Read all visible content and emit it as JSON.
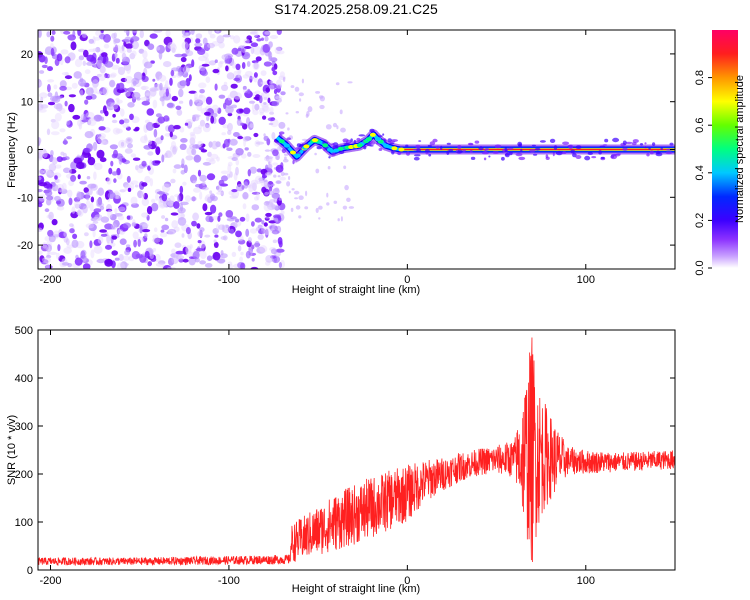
{
  "chart_data": [
    {
      "type": "heatmap",
      "title": "S174.2025.258.09.21.C25",
      "xlabel": "Height of straight line (km)",
      "ylabel": "Frequency (Hz)",
      "xlim": [
        -207,
        150
      ],
      "ylim": [
        -25,
        25
      ],
      "xticks": [
        -200,
        -100,
        0,
        100
      ],
      "yticks": [
        20,
        10,
        0,
        -10,
        -20
      ],
      "colorbar": {
        "label": "Normalized spectral amplitude",
        "range": [
          0.0,
          1.0
        ],
        "ticks": [
          "0.0",
          "0.2",
          "0.4",
          "0.6",
          "0.8"
        ],
        "colormap": [
          "#ffffff",
          "#a050ff",
          "#6400ff",
          "#0000ff",
          "#00c8ff",
          "#00ff80",
          "#80ff00",
          "#ffff00",
          "#ff8000",
          "#ff0000",
          "#ff0080"
        ]
      },
      "noise_region_x": [
        -207,
        -73
      ],
      "signal_track": {
        "x": [
          -73,
          -68,
          -62,
          -57,
          -52,
          -47,
          -42,
          -37,
          -32,
          -27,
          -22,
          -19,
          -16,
          -12,
          -8,
          -4,
          0,
          20,
          40,
          60,
          80,
          100,
          120,
          150
        ],
        "freq": [
          2.5,
          1.0,
          -1.5,
          0.5,
          2.0,
          1.2,
          -0.5,
          0.2,
          0.5,
          0.8,
          2.0,
          3.2,
          2.0,
          0.8,
          0.3,
          0.0,
          0.0,
          0.0,
          0.0,
          0.0,
          0.0,
          0.0,
          0.0,
          0.0
        ]
      }
    },
    {
      "type": "line",
      "xlabel": "Height of straight line (km)",
      "ylabel": "SNR (10 * v/v)",
      "xlim": [
        -207,
        150
      ],
      "ylim": [
        0,
        500
      ],
      "xticks": [
        -200,
        -100,
        0,
        100
      ],
      "yticks": [
        0,
        100,
        200,
        300,
        400,
        500
      ],
      "color": "#ff2020",
      "series": [
        {
          "name": "SNR",
          "x": [
            -207,
            -150,
            -100,
            -66,
            -65,
            -40,
            -20,
            0,
            10,
            20,
            30,
            40,
            50,
            60,
            63,
            66,
            68,
            70,
            72,
            75,
            80,
            85,
            90,
            100,
            120,
            150
          ],
          "mean": [
            18,
            18,
            20,
            22,
            55,
            100,
            130,
            160,
            185,
            200,
            215,
            225,
            230,
            232,
            235,
            240,
            245,
            250,
            245,
            240,
            235,
            230,
            228,
            225,
            225,
            230
          ],
          "amp": [
            8,
            8,
            9,
            10,
            40,
            60,
            65,
            60,
            45,
            35,
            30,
            28,
            30,
            40,
            90,
            160,
            200,
            250,
            180,
            130,
            90,
            60,
            30,
            25,
            20,
            20
          ]
        }
      ]
    }
  ]
}
